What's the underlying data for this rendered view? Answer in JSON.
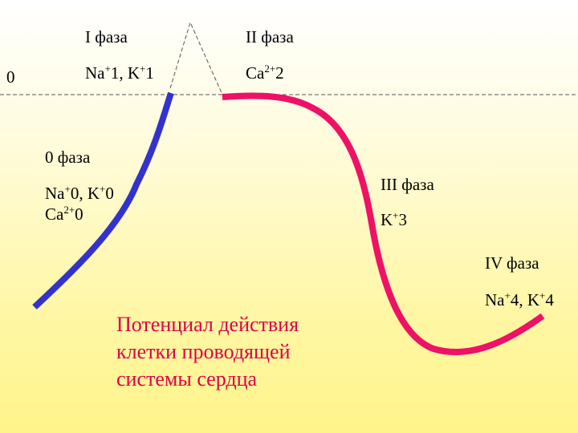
{
  "zero_label": "0",
  "phases": {
    "phase1": {
      "title": "I фаза",
      "ions": [
        {
          "sym": "Na",
          "charge": "+",
          "val": "1"
        },
        {
          "sym": "K",
          "charge": "+",
          "val": "1"
        }
      ]
    },
    "phase2": {
      "title": "II фаза",
      "ions": [
        {
          "sym": "Ca",
          "charge": "2+",
          "val": "2"
        }
      ]
    },
    "phase0": {
      "title": "0 фаза",
      "ions_line1": [
        {
          "sym": "Na",
          "charge": "+",
          "val": "0"
        },
        {
          "sym": "K",
          "charge": "+",
          "val": "0"
        }
      ],
      "ions_line2": [
        {
          "sym": "Ca",
          "charge": "2+",
          "val": "0"
        }
      ]
    },
    "phase3": {
      "title": "III фаза",
      "ions": [
        {
          "sym": "K",
          "charge": "+",
          "val": "3"
        }
      ]
    },
    "phase4": {
      "title": "IV фаза",
      "ions": [
        {
          "sym": "Na",
          "charge": "+",
          "val": "4"
        },
        {
          "sym": "K",
          "charge": "+",
          "val": "4"
        }
      ]
    }
  },
  "caption": {
    "line1": "Потенциал действия",
    "line2": "клетки проводящей",
    "line3": "системы сердца"
  },
  "colors": {
    "depolarization_curve": "#3333cc",
    "repolarization_curve": "#ee1166",
    "baseline": "#555555",
    "caption": "#e0004a"
  }
}
